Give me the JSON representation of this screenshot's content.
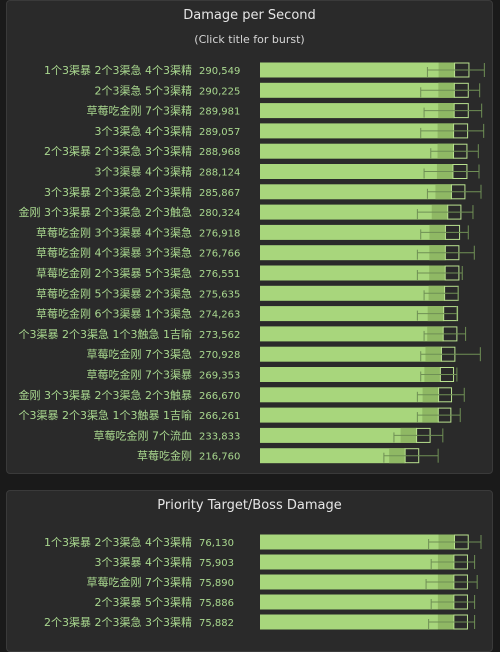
{
  "chart_data": [
    {
      "type": "bar",
      "title": "Damage per Second",
      "subtitle": "(Click title for burst)",
      "xlim": [
        0,
        330000
      ],
      "categories": [
        "1个3渠暴 2个3渠急 4个3渠精",
        "2个3渠急 5个3渠精",
        "草莓吃金刚 7个3渠精",
        "3个3渠急 4个3渠精",
        "2个3渠暴 2个3渠急 3个3渠精",
        "3个3渠暴 4个3渠精",
        "3个3渠暴 2个3渠急 2个3渠精",
        "金刚 3个3渠暴 2个3渠急 2个3触急",
        "草莓吃金刚 3个3渠暴 4个3渠急",
        "草莓吃金刚 4个3渠暴 3个3渠急",
        "草莓吃金刚 2个3渠暴 5个3渠急",
        "草莓吃金刚 5个3渠暴 2个3渠急",
        "草莓吃金刚 6个3渠暴 1个3渠急",
        "个3渠暴 2个3渠急 1个3触急 1吉喻",
        "草莓吃金刚 7个3渠急",
        "草莓吃金刚 7个3渠暴",
        "金刚 3个3渠暴 2个3渠急 2个3触暴",
        "个3渠暴 2个3渠急 1个3触暴 1吉喻",
        "草莓吃金刚 7个流血",
        "草莓吃金刚"
      ],
      "values": [
        290549,
        290225,
        289981,
        289057,
        288968,
        288124,
        285867,
        280324,
        276918,
        276766,
        276551,
        275635,
        274263,
        273562,
        270928,
        269353,
        266670,
        266261,
        233833,
        216760
      ],
      "value_labels": [
        "290,549",
        "290,225",
        "289,981",
        "289,057",
        "288,968",
        "288,124",
        "285,867",
        "280,324",
        "276,918",
        "276,766",
        "276,551",
        "275,635",
        "274,263",
        "273,562",
        "270,928",
        "269,353",
        "266,670",
        "266,261",
        "233,833",
        "216,760"
      ],
      "ranges": [
        [
          250000,
          312000,
          335000
        ],
        [
          240000,
          311000,
          328000
        ],
        [
          245000,
          311000,
          331000
        ],
        [
          240000,
          310000,
          334000
        ],
        [
          255000,
          309000,
          326000
        ],
        [
          245000,
          309000,
          327000
        ],
        [
          250000,
          306000,
          330000
        ],
        [
          235000,
          300000,
          318000
        ],
        [
          240000,
          298000,
          311000
        ],
        [
          235000,
          297000,
          320000
        ],
        [
          235000,
          297000,
          302000
        ],
        [
          245000,
          296000,
          296000
        ],
        [
          235000,
          295000,
          294000
        ],
        [
          245000,
          294000,
          307000
        ],
        [
          240000,
          291000,
          329000
        ],
        [
          240000,
          289000,
          294000
        ],
        [
          235000,
          286000,
          305000
        ],
        [
          235000,
          285000,
          299000
        ],
        [
          200000,
          254000,
          273000
        ],
        [
          185000,
          237000,
          266000
        ]
      ]
    },
    {
      "type": "bar",
      "title": "Priority Target/Boss Damage",
      "xlim": [
        0,
        86500
      ],
      "categories": [
        "1个3渠暴 2个3渠急 4个3渠精",
        "3个3渠暴 4个3渠精",
        "草莓吃金刚 7个3渠精",
        "2个3渠暴 5个3渠精",
        "2个3渠暴 2个3渠急 3个3渠精"
      ],
      "values": [
        76130,
        75903,
        75890,
        75886,
        75882
      ],
      "value_labels": [
        "76,130",
        "75,903",
        "75,890",
        "75,886",
        "75,882"
      ],
      "ranges": [
        [
          66000,
          81500,
          86500
        ],
        [
          67000,
          81200,
          84000
        ],
        [
          65000,
          81200,
          85000
        ],
        [
          67000,
          81200,
          84000
        ],
        [
          66000,
          81200,
          84000
        ]
      ]
    }
  ]
}
